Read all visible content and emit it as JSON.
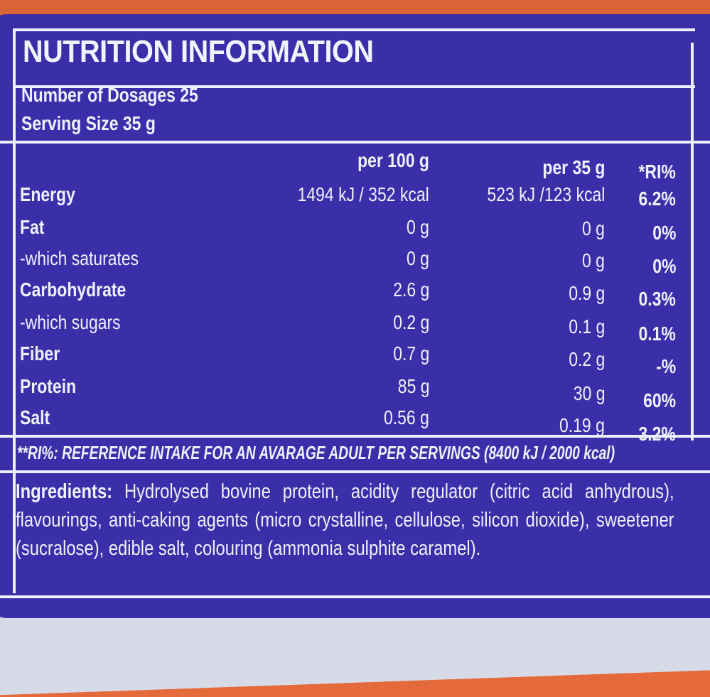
{
  "title": "NUTRITION INFORMATION",
  "dosages": "Number of Dosages 25",
  "serving": "Serving Size 35 g",
  "headers": {
    "per100": "per 100 g",
    "per35": "per 35 g",
    "ri": "*RI%"
  },
  "rows": [
    {
      "label": "Energy",
      "per100": "1494 kJ / 352 kcal",
      "per35": "523 kJ /123 kcal",
      "ri": "6.2%",
      "bold": true
    },
    {
      "label": "Fat",
      "per100": "0 g",
      "per35": "0 g",
      "ri": "0%",
      "bold": true
    },
    {
      "label": "-which saturates",
      "per100": "0 g",
      "per35": "0 g",
      "ri": "0%",
      "bold": false
    },
    {
      "label": "Carbohydrate",
      "per100": "2.6 g",
      "per35": "0.9 g",
      "ri": "0.3%",
      "bold": true
    },
    {
      "label": "-which sugars",
      "per100": "0.2 g",
      "per35": "0.1 g",
      "ri": "0.1%",
      "bold": false
    },
    {
      "label": "Fiber",
      "per100": "0.7 g",
      "per35": "0.2 g",
      "ri": "-%",
      "bold": true
    },
    {
      "label": "Protein",
      "per100": "85 g",
      "per35": "30 g",
      "ri": "60%",
      "bold": true
    },
    {
      "label": "Salt",
      "per100": "0.56 g",
      "per35": "0.19 g",
      "ri": "3.2%",
      "bold": true
    }
  ],
  "reference_note": "**RI%: REFERENCE INTAKE FOR AN AVARAGE ADULT PER SERVINGS (8400 kJ / 2000 kcal)",
  "ingredients_label": "Ingredients:",
  "ingredients_text": "Hydrolysed bovine protein, acidity regulator (citric acid anhydrous), flavourings, anti-caking agents (micro crystalline, cellulose, silicon dioxide), sweetener (sucralose), edible salt, colouring (ammonia sulphite caramel).",
  "colors": {
    "panel_blue": "#3a2fa8",
    "text": "#eef0fb",
    "orange": "#d9643a"
  }
}
